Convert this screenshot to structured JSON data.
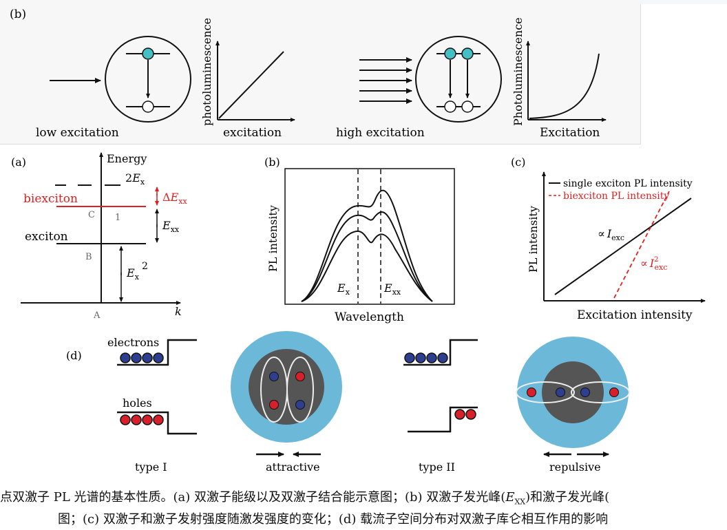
{
  "panel_b_top": {
    "label": "(b)",
    "low_label": "low excitation",
    "ylabel1": "photoluminescence",
    "xlabel1": "excitation",
    "high_label": "high excitation",
    "ylabel2": "Photoluminescence",
    "xlabel2": "Excitation"
  },
  "panel_a": {
    "label": "(a)",
    "energy": "Energy",
    "two": "2",
    "ex_sub": "x",
    "delta": "Δ",
    "xx_sub": "xx",
    "biexciton": "biexciton",
    "exciton": "exciton",
    "c": "C",
    "one": "1",
    "b": "B",
    "a": "A",
    "ex_sup": "2",
    "k": "k",
    "E": "E"
  },
  "panel_b": {
    "label": "(b)",
    "ylabel": "PL intensity",
    "xlabel": "Wavelength",
    "E": "E",
    "x_sub": "x",
    "xx_sub": "xx"
  },
  "panel_c": {
    "label": "(c)",
    "legend1": "single exciton PL intensity",
    "legend2": "biexciton PL intensity",
    "ylabel": "PL intensity",
    "xlabel": "Excitation intensity",
    "prop": "∝",
    "I": "I",
    "exc_sub": "exc",
    "sq": "2",
    "accent_red": "#e02020"
  },
  "panel_d": {
    "label": "(d)",
    "electrons": "electrons",
    "holes": "holes",
    "type1": "type I",
    "attractive": "attractive",
    "type2": "type II",
    "repulsive": "repulsive",
    "electron_color": "#2f3f8f",
    "hole_color": "#d6202a",
    "shell_color": "#6bb8d8",
    "core_color": "#555555"
  },
  "caption": {
    "line1": "点双激子 PL 光谱的基本性质。(a) 双激子能级以及双激子结合能示意图；(b) 双激子发光峰(",
    "line1_E": "E",
    "line1_sub": "XX",
    "line1_tail": ")和激子发光峰(",
    "line2": "图；(c) 双激子和激子发射强度随激发强度的变化；(d) 载流子空间分布对双激子库仑相互作用的影响"
  }
}
